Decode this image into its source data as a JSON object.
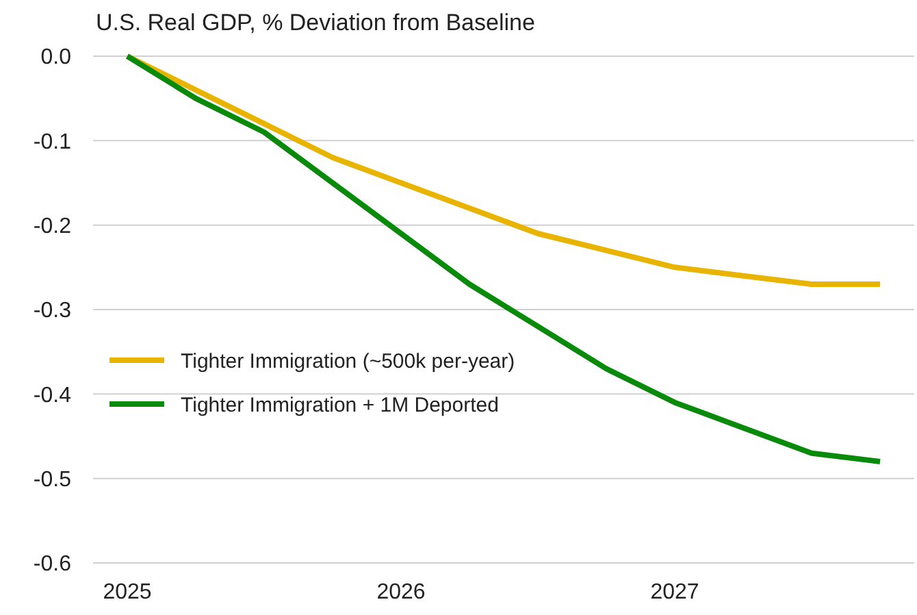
{
  "chart_data": {
    "type": "line",
    "title": "U.S. Real GDP, % Deviation from Baseline",
    "x": [
      2025,
      2025.25,
      2025.5,
      2025.75,
      2026,
      2026.25,
      2026.5,
      2026.75,
      2027,
      2027.25,
      2027.5,
      2027.75
    ],
    "series": [
      {
        "name": "Tighter Immigration (~500k per-year)",
        "color": "#e8b400",
        "values": [
          0,
          -0.04,
          -0.08,
          -0.12,
          -0.15,
          -0.18,
          -0.21,
          -0.23,
          -0.25,
          -0.26,
          -0.27,
          -0.27
        ]
      },
      {
        "name": "Tighter Immigration + 1M Deported",
        "color": "#0a8a0a",
        "values": [
          0,
          -0.05,
          -0.09,
          -0.15,
          -0.21,
          -0.27,
          -0.32,
          -0.37,
          -0.41,
          -0.44,
          -0.47,
          -0.48
        ]
      }
    ],
    "xlim": [
      2024.875,
      2027.875
    ],
    "xticks": [
      2025,
      2026,
      2027
    ],
    "ylim": [
      -0.6,
      0
    ],
    "yticks": [
      {
        "value": 0,
        "label": "0.0"
      },
      {
        "value": -0.1,
        "label": "-0.1"
      },
      {
        "value": -0.2,
        "label": "-0.2"
      },
      {
        "value": -0.3,
        "label": "-0.3"
      },
      {
        "value": -0.4,
        "label": "-0.4"
      },
      {
        "value": -0.5,
        "label": "-0.5"
      },
      {
        "value": -0.6,
        "label": "-0.6"
      }
    ],
    "grid": "y",
    "legend": "left",
    "marker": "none",
    "line_style": "solid"
  }
}
